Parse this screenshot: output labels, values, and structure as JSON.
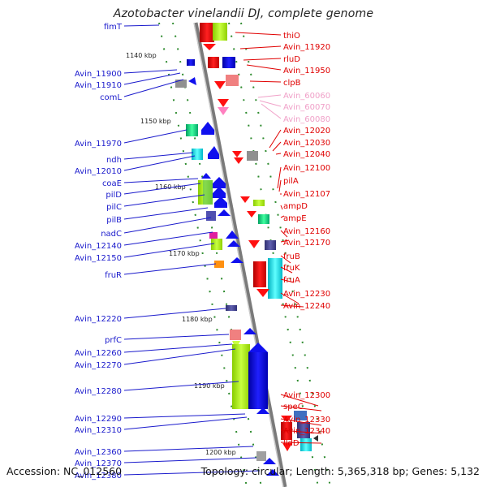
{
  "title": "Azotobacter vinelandii DJ, complete genome",
  "accession": "Accession: NC_012560",
  "summary": "Topology: circular; Length: 5,365,318 bp; Genes: 5,132",
  "colors": {
    "minus_label": "#1a1acc",
    "plus_label": "#e00000",
    "faded_label": "#f0a0c8",
    "backbone": "#8c8c8c",
    "dots": "#2e8b2e"
  },
  "ticks": [
    "1140 kbp",
    "1150 kbp",
    "1160 kbp",
    "1170 kbp",
    "1180 kbp",
    "1190 kbp",
    "1200 kbp"
  ],
  "left_genes": [
    "fimT",
    "Avin_11900",
    "Avin_11910",
    "comL",
    "Avin_11970",
    "ndh",
    "Avin_12010",
    "coaE",
    "pilD",
    "pilC",
    "pilB",
    "nadC",
    "Avin_12140",
    "Avin_12150",
    "fruR",
    "Avin_12220",
    "prfC",
    "Avin_12260",
    "Avin_12270",
    "Avin_12280",
    "Avin_12290",
    "Avin_12310",
    "Avin_12360",
    "Avin_12370",
    "Avin_12380"
  ],
  "right_genes": [
    "thiO",
    "Avin_11920",
    "rluD",
    "Avin_11950",
    "clpB",
    "Avin_60060",
    "Avin_60070",
    "Avin_60080",
    "Avin_12020",
    "Avin_12030",
    "Avin_12040",
    "Avin_12100",
    "pilA",
    "Avin_12107",
    "ampD",
    "ampE",
    "Avin_12160",
    "Avin_12170",
    "fruB",
    "fruK",
    "fruA",
    "Avin_12230",
    "Avin_12240",
    "Avin_12300",
    "speC",
    "Avin_12330",
    "Avin_12340",
    "lldD"
  ],
  "faded_right_genes": [
    "Avin_60060",
    "Avin_60070",
    "Avin_60080"
  ]
}
